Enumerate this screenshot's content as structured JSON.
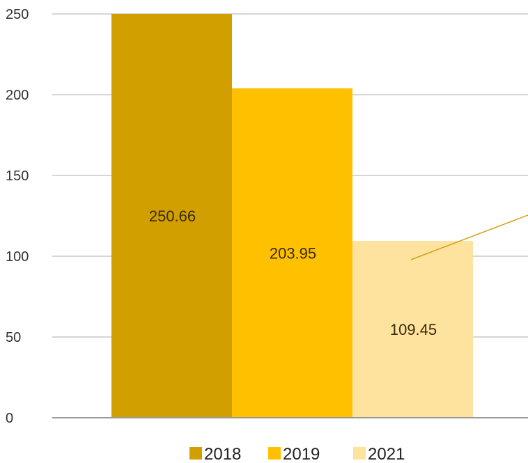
{
  "chart_data": {
    "type": "bar",
    "categories": [
      "2018",
      "2019",
      "2021"
    ],
    "values": [
      250.66,
      203.95,
      109.45
    ],
    "data_labels": [
      "250.66",
      "203.95",
      "109.45"
    ],
    "colors": [
      "#d19f00",
      "#ffc000",
      "#fde39e"
    ],
    "legend": {
      "position": "bottom",
      "entries": [
        "2018",
        "2019",
        "2021"
      ]
    },
    "ylim": [
      0,
      250
    ],
    "yticks": [
      0,
      50,
      100,
      150,
      200,
      250
    ],
    "ytick_labels": [
      "0",
      "50",
      "100",
      "150",
      "200",
      "250"
    ],
    "grid": true,
    "title": "",
    "xlabel": "",
    "ylabel": "",
    "annotation_line_color": "#d4a017"
  }
}
